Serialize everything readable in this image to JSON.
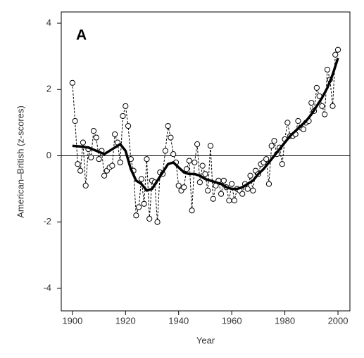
{
  "chart_data": {
    "type": "line",
    "panel_label": "A",
    "xlabel": "Year",
    "ylabel": "American–British (z-scores)",
    "xlim": [
      1895.8,
      2004.5
    ],
    "ylim": [
      -4.68,
      4.34
    ],
    "xticks": [
      1900,
      1920,
      1940,
      1960,
      1980,
      2000
    ],
    "yticks": [
      -4,
      -2,
      0,
      2,
      4
    ],
    "reference_line": 0,
    "series": [
      {
        "color": "#000000",
        "style": "dashed",
        "markers": true,
        "x": [
          1900,
          1901,
          1902,
          1903,
          1904,
          1905,
          1906,
          1907,
          1908,
          1909,
          1910,
          1911,
          1912,
          1913,
          1914,
          1915,
          1916,
          1917,
          1918,
          1919,
          1920,
          1921,
          1922,
          1923,
          1924,
          1925,
          1926,
          1927,
          1928,
          1929,
          1930,
          1931,
          1932,
          1933,
          1934,
          1935,
          1936,
          1937,
          1938,
          1939,
          1940,
          1941,
          1942,
          1943,
          1944,
          1945,
          1946,
          1947,
          1948,
          1949,
          1950,
          1951,
          1952,
          1953,
          1954,
          1955,
          1956,
          1957,
          1958,
          1959,
          1960,
          1961,
          1962,
          1963,
          1964,
          1965,
          1966,
          1967,
          1968,
          1969,
          1970,
          1971,
          1972,
          1973,
          1974,
          1975,
          1976,
          1977,
          1978,
          1979,
          1980,
          1981,
          1982,
          1983,
          1984,
          1985,
          1986,
          1987,
          1988,
          1989,
          1990,
          1991,
          1992,
          1993,
          1994,
          1995,
          1996,
          1997,
          1998,
          1999,
          2000
        ],
        "values": [
          2.2,
          1.05,
          -0.25,
          -0.45,
          0.4,
          -0.9,
          0.2,
          -0.05,
          0.75,
          0.55,
          -0.1,
          0.15,
          -0.6,
          -0.45,
          -0.35,
          -0.3,
          0.65,
          0.4,
          -0.2,
          1.2,
          1.5,
          0.9,
          -0.1,
          -0.45,
          -1.8,
          -1.55,
          -0.7,
          -1.45,
          -0.1,
          -1.9,
          -0.75,
          -0.8,
          -2.0,
          -0.5,
          -0.55,
          0.15,
          0.9,
          0.55,
          0.05,
          -0.2,
          -0.9,
          -1.05,
          -0.95,
          -0.4,
          -0.15,
          -1.65,
          -0.2,
          0.35,
          -0.8,
          -0.3,
          -0.55,
          -1.05,
          0.3,
          -1.3,
          -0.9,
          -0.75,
          -1.15,
          -0.75,
          -0.95,
          -1.35,
          -0.85,
          -1.35,
          -1.0,
          -1.05,
          -1.15,
          -0.85,
          -1.0,
          -0.6,
          -1.05,
          -0.45,
          -0.55,
          -0.25,
          -0.2,
          -0.1,
          -0.85,
          0.3,
          0.45,
          0.05,
          0.25,
          -0.25,
          0.5,
          1.0,
          0.6,
          0.6,
          0.65,
          1.05,
          0.85,
          0.8,
          1.0,
          1.05,
          1.6,
          1.35,
          2.05,
          1.8,
          1.5,
          1.25,
          2.6,
          2.3,
          1.5,
          3.05,
          3.2
        ]
      },
      {
        "color": "#000000",
        "style": "solid",
        "markers": false,
        "x": [
          1900,
          1903,
          1906,
          1909,
          1912,
          1915,
          1918,
          1920,
          1922,
          1924,
          1926,
          1928,
          1930,
          1932,
          1934,
          1936,
          1938,
          1940,
          1942,
          1944,
          1946,
          1948,
          1950,
          1952,
          1954,
          1956,
          1958,
          1960,
          1962,
          1964,
          1966,
          1968,
          1970,
          1972,
          1974,
          1976,
          1978,
          1980,
          1982,
          1984,
          1986,
          1988,
          1990,
          1992,
          1994,
          1996,
          1998,
          2000
        ],
        "values": [
          0.3,
          0.28,
          0.25,
          0.15,
          0.05,
          0.2,
          0.35,
          0.15,
          -0.4,
          -0.75,
          -0.85,
          -1.05,
          -1.0,
          -0.75,
          -0.5,
          -0.25,
          -0.2,
          -0.35,
          -0.5,
          -0.55,
          -0.55,
          -0.6,
          -0.7,
          -0.75,
          -0.8,
          -0.85,
          -0.95,
          -1.0,
          -1.0,
          -0.95,
          -0.85,
          -0.75,
          -0.55,
          -0.4,
          -0.2,
          0.0,
          0.2,
          0.4,
          0.6,
          0.75,
          0.9,
          1.05,
          1.25,
          1.5,
          1.75,
          2.05,
          2.45,
          2.95
        ]
      }
    ]
  }
}
